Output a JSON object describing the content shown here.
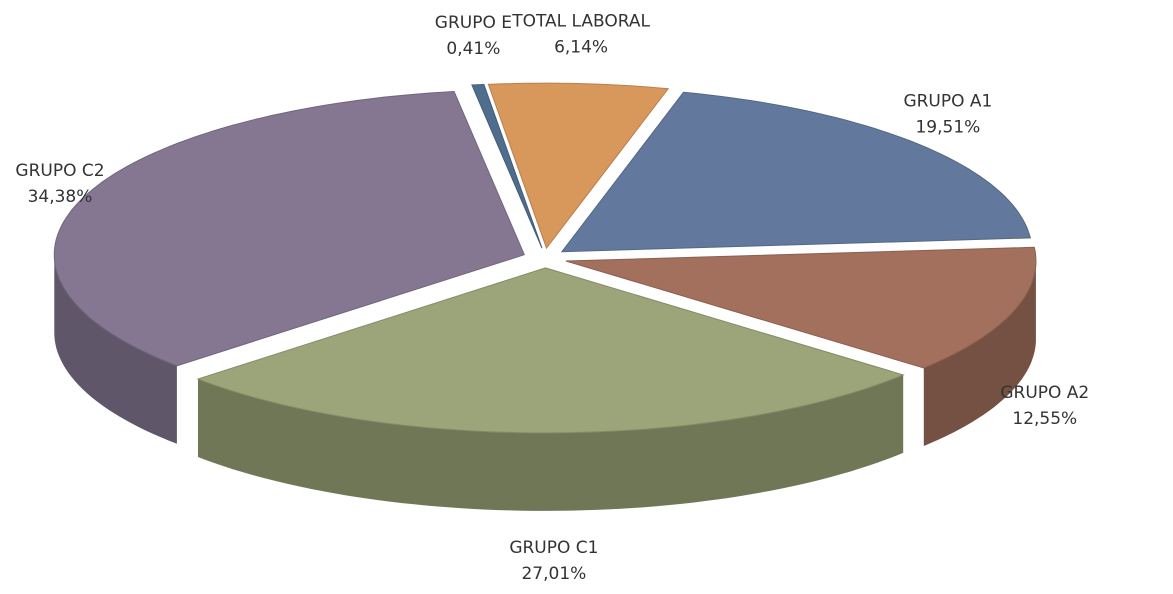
{
  "chart_data": {
    "type": "pie",
    "categories": [
      "GRUPO A1",
      "GRUPO A2",
      "GRUPO C1",
      "GRUPO C2",
      "GRUPO E",
      "TOTAL LABORAL"
    ],
    "values": [
      19.51,
      12.55,
      27.01,
      34.38,
      0.41,
      6.14
    ],
    "value_labels": [
      "19,51%",
      "12,55%",
      "27,01%",
      "34,38%",
      "0,41%",
      "6,14%"
    ],
    "colors": [
      "#62799d",
      "#a3705d",
      "#9ba579",
      "#857792",
      "#4f6d8c",
      "#d8975b"
    ]
  }
}
